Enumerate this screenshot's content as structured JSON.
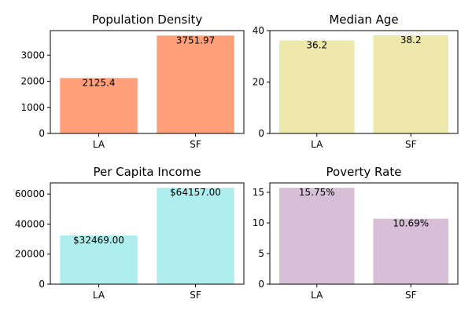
{
  "chart_data": [
    {
      "type": "bar",
      "title": "Population Density",
      "categories": [
        "LA",
        "SF"
      ],
      "values": [
        2125.4,
        3751.97
      ],
      "value_labels": [
        "2125.4",
        "3751.97"
      ],
      "color": "#ffa07a",
      "ylim": [
        0,
        3940
      ],
      "yticks": [
        0,
        1000,
        2000,
        3000
      ],
      "ytick_labels": [
        "0",
        "1000",
        "2000",
        "3000"
      ]
    },
    {
      "type": "bar",
      "title": "Median Age",
      "categories": [
        "LA",
        "SF"
      ],
      "values": [
        36.2,
        38.2
      ],
      "value_labels": [
        "36.2",
        "38.2"
      ],
      "color": "#eee8aa",
      "ylim": [
        0,
        40
      ],
      "yticks": [
        0,
        20,
        40
      ],
      "ytick_labels": [
        "0",
        "20",
        "40"
      ]
    },
    {
      "type": "bar",
      "title": "Per Capita Income",
      "categories": [
        "LA",
        "SF"
      ],
      "values": [
        32469.0,
        64157.0
      ],
      "value_labels": [
        "$32469.00",
        "$64157.00"
      ],
      "color": "#afeeee",
      "ylim": [
        0,
        67365
      ],
      "yticks": [
        0,
        20000,
        40000,
        60000
      ],
      "ytick_labels": [
        "0",
        "20000",
        "40000",
        "60000"
      ]
    },
    {
      "type": "bar",
      "title": "Poverty Rate",
      "categories": [
        "LA",
        "SF"
      ],
      "values": [
        15.75,
        10.69
      ],
      "value_labels": [
        "15.75%",
        "10.69%"
      ],
      "color": "#d8bfd8",
      "ylim": [
        0,
        16.54
      ],
      "yticks": [
        0,
        5,
        10,
        15
      ],
      "ytick_labels": [
        "0",
        "5",
        "10",
        "15"
      ]
    }
  ]
}
